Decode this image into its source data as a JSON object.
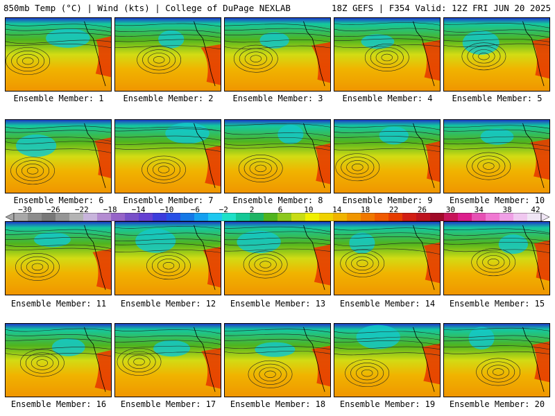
{
  "header": {
    "left": "850mb Temp (°C) | Wind (kts) | College of DuPage NEXLAB",
    "right": "18Z GEFS | F354 Valid: 12Z FRI JUN 20 2025"
  },
  "panels": [
    {
      "label": "Ensemble Member: 1"
    },
    {
      "label": "Ensemble Member: 2"
    },
    {
      "label": "Ensemble Member: 3"
    },
    {
      "label": "Ensemble Member: 4"
    },
    {
      "label": "Ensemble Member: 5"
    },
    {
      "label": "Ensemble Member: 6"
    },
    {
      "label": "Ensemble Member: 7"
    },
    {
      "label": "Ensemble Member: 8"
    },
    {
      "label": "Ensemble Member: 9"
    },
    {
      "label": "Ensemble Member: 10"
    },
    {
      "label": "Ensemble Member: 11"
    },
    {
      "label": "Ensemble Member: 12"
    },
    {
      "label": "Ensemble Member: 13"
    },
    {
      "label": "Ensemble Member: 14"
    },
    {
      "label": "Ensemble Member: 15"
    },
    {
      "label": "Ensemble Member: 16"
    },
    {
      "label": "Ensemble Member: 17"
    },
    {
      "label": "Ensemble Member: 18"
    },
    {
      "label": "Ensemble Member: 19"
    },
    {
      "label": "Ensemble Member: 20"
    }
  ],
  "colorbar": {
    "ticks": [
      "−30",
      "−26",
      "−22",
      "−18",
      "−14",
      "−10",
      "−6",
      "−2",
      "2",
      "6",
      "10",
      "14",
      "18",
      "22",
      "26",
      "30",
      "34",
      "38",
      "42"
    ],
    "colors": [
      "#a8a8a8",
      "#8c8c8c",
      "#787878",
      "#969696",
      "#b4b4b4",
      "#c8b4dc",
      "#b48cd2",
      "#9664c8",
      "#7850c8",
      "#6440d2",
      "#3c3cdc",
      "#2850e6",
      "#1478e6",
      "#14a0f0",
      "#1ec8f0",
      "#1ee1c8",
      "#14c896",
      "#1eb464",
      "#50b41e",
      "#8cc81e",
      "#c8dc14",
      "#f0f000",
      "#f0d200",
      "#f0b400",
      "#f09600",
      "#f07800",
      "#f05a00",
      "#e63c00",
      "#d21e14",
      "#be141e",
      "#a00a28",
      "#c8145a",
      "#dc1e8c",
      "#e650b4",
      "#f078d2",
      "#f0a0e6",
      "#f0c8f0",
      "#f0e6f5"
    ]
  }
}
